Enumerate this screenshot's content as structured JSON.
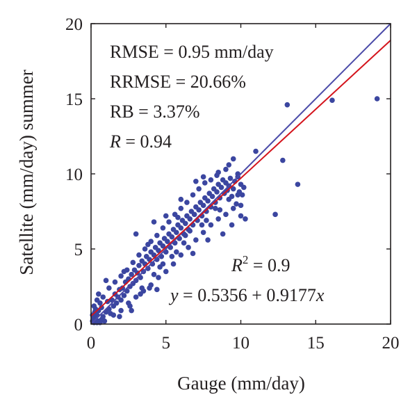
{
  "chart_data": {
    "type": "scatter",
    "xlabel": "Gauge (mm/day)",
    "ylabel": "Satellite (mm/day) summer",
    "xlim": [
      0,
      20
    ],
    "ylim": [
      0,
      20
    ],
    "xticks": [
      "0",
      "5",
      "10",
      "15",
      "20"
    ],
    "yticks": [
      "0",
      "5",
      "10",
      "15",
      "20"
    ],
    "grid": false,
    "legend": "none",
    "stats": {
      "rmse": "RMSE = 0.95 mm/day",
      "rrmse": "RRMSE = 20.66%",
      "rb": "RB = 3.37%",
      "r_symbol": "R",
      "r_value": " = 0.94",
      "r2_base": "R",
      "r2_exp": "2",
      "r2_value": " = 0.9",
      "eq_y": "y",
      "eq_mid": " = 0.5356 + 0.9177",
      "eq_x": "x"
    },
    "lines": [
      {
        "role": "1:1 line",
        "x": [
          0,
          20
        ],
        "y": [
          0,
          20
        ],
        "color": "#4a4aa8"
      },
      {
        "role": "regression fit",
        "x": [
          0,
          20
        ],
        "y": [
          0.5356,
          18.8896
        ],
        "color": "#d4141c"
      }
    ],
    "point_color": "#3b46a0",
    "points": [
      [
        0.1,
        0.2
      ],
      [
        0.2,
        0.1
      ],
      [
        0.15,
        0.4
      ],
      [
        0.3,
        0.3
      ],
      [
        0.4,
        0.1
      ],
      [
        0.5,
        0.2
      ],
      [
        0.1,
        0.6
      ],
      [
        0.25,
        0.8
      ],
      [
        0.6,
        0.1
      ],
      [
        0.7,
        0.3
      ],
      [
        0.3,
        1.0
      ],
      [
        0.4,
        0.6
      ],
      [
        0.5,
        0.9
      ],
      [
        0.2,
        1.2
      ],
      [
        0.8,
        0.5
      ],
      [
        0.9,
        0.2
      ],
      [
        1.0,
        0.8
      ],
      [
        0.6,
        1.4
      ],
      [
        0.7,
        1.1
      ],
      [
        0.4,
        1.6
      ],
      [
        1.2,
        1.0
      ],
      [
        1.1,
        1.5
      ],
      [
        1.3,
        0.7
      ],
      [
        1.4,
        1.6
      ],
      [
        1.5,
        1.2
      ],
      [
        1.6,
        2.0
      ],
      [
        1.7,
        1.4
      ],
      [
        1.8,
        1.8
      ],
      [
        1.9,
        2.3
      ],
      [
        2.0,
        1.6
      ],
      [
        2.1,
        2.4
      ],
      [
        2.2,
        1.9
      ],
      [
        2.3,
        2.8
      ],
      [
        2.4,
        2.2
      ],
      [
        2.5,
        3.0
      ],
      [
        2.6,
        2.5
      ],
      [
        2.7,
        3.3
      ],
      [
        2.8,
        2.7
      ],
      [
        2.9,
        3.6
      ],
      [
        3.0,
        2.9
      ],
      [
        3.1,
        3.4
      ],
      [
        3.2,
        3.9
      ],
      [
        3.3,
        3.1
      ],
      [
        3.4,
        4.2
      ],
      [
        3.5,
        3.5
      ],
      [
        3.6,
        4.0
      ],
      [
        3.7,
        4.5
      ],
      [
        3.8,
        3.7
      ],
      [
        3.9,
        4.3
      ],
      [
        4.0,
        4.8
      ],
      [
        4.1,
        4.0
      ],
      [
        4.2,
        4.6
      ],
      [
        4.3,
        5.1
      ],
      [
        4.4,
        4.3
      ],
      [
        4.5,
        4.9
      ],
      [
        4.6,
        5.4
      ],
      [
        4.7,
        4.5
      ],
      [
        4.8,
        5.2
      ],
      [
        4.9,
        5.7
      ],
      [
        5.0,
        4.8
      ],
      [
        5.1,
        5.5
      ],
      [
        5.2,
        6.0
      ],
      [
        5.3,
        5.1
      ],
      [
        5.4,
        5.8
      ],
      [
        5.5,
        6.3
      ],
      [
        5.6,
        5.4
      ],
      [
        5.7,
        6.1
      ],
      [
        5.8,
        6.6
      ],
      [
        5.9,
        5.7
      ],
      [
        6.0,
        6.4
      ],
      [
        6.1,
        6.9
      ],
      [
        6.2,
        6.0
      ],
      [
        6.3,
        6.7
      ],
      [
        6.4,
        7.2
      ],
      [
        6.5,
        6.3
      ],
      [
        6.6,
        7.0
      ],
      [
        6.7,
        7.5
      ],
      [
        6.8,
        6.6
      ],
      [
        6.9,
        7.3
      ],
      [
        7.0,
        7.8
      ],
      [
        7.1,
        6.9
      ],
      [
        7.2,
        7.6
      ],
      [
        7.3,
        8.1
      ],
      [
        7.4,
        7.2
      ],
      [
        7.5,
        7.9
      ],
      [
        7.6,
        8.4
      ],
      [
        7.7,
        7.5
      ],
      [
        7.8,
        8.2
      ],
      [
        7.9,
        8.7
      ],
      [
        8.0,
        7.8
      ],
      [
        8.1,
        8.5
      ],
      [
        8.2,
        9.0
      ],
      [
        8.3,
        8.1
      ],
      [
        8.4,
        8.8
      ],
      [
        8.5,
        9.3
      ],
      [
        8.6,
        8.4
      ],
      [
        8.7,
        9.1
      ],
      [
        8.8,
        9.6
      ],
      [
        8.9,
        8.7
      ],
      [
        9.0,
        9.4
      ],
      [
        9.1,
        8.9
      ],
      [
        9.2,
        9.2
      ],
      [
        9.3,
        9.7
      ],
      [
        9.4,
        8.5
      ],
      [
        9.5,
        9.0
      ],
      [
        9.6,
        9.5
      ],
      [
        9.7,
        8.0
      ],
      [
        9.8,
        9.8
      ],
      [
        9.9,
        8.8
      ],
      [
        10.0,
        9.3
      ],
      [
        1.5,
        0.6
      ],
      [
        2.0,
        0.9
      ],
      [
        2.5,
        1.4
      ],
      [
        3.0,
        1.8
      ],
      [
        3.5,
        2.2
      ],
      [
        4.0,
        2.6
      ],
      [
        4.5,
        3.1
      ],
      [
        5.0,
        3.5
      ],
      [
        5.5,
        4.0
      ],
      [
        6.0,
        4.6
      ],
      [
        6.5,
        5.1
      ],
      [
        7.0,
        5.6
      ],
      [
        7.5,
        6.1
      ],
      [
        8.0,
        6.6
      ],
      [
        8.5,
        7.0
      ],
      [
        9.0,
        7.3
      ],
      [
        9.5,
        7.7
      ],
      [
        10.0,
        7.9
      ],
      [
        10.1,
        8.6
      ],
      [
        10.2,
        9.1
      ],
      [
        0.8,
        1.8
      ],
      [
        1.2,
        2.4
      ],
      [
        1.6,
        2.8
      ],
      [
        2.0,
        3.2
      ],
      [
        2.4,
        3.6
      ],
      [
        2.8,
        4.1
      ],
      [
        3.2,
        4.6
      ],
      [
        3.6,
        5.0
      ],
      [
        4.0,
        5.5
      ],
      [
        4.4,
        5.9
      ],
      [
        4.8,
        6.4
      ],
      [
        5.2,
        6.8
      ],
      [
        5.6,
        7.3
      ],
      [
        6.0,
        7.7
      ],
      [
        6.4,
        8.1
      ],
      [
        6.8,
        8.6
      ],
      [
        7.2,
        9.0
      ],
      [
        7.6,
        9.4
      ],
      [
        8.0,
        9.6
      ],
      [
        8.4,
        9.9
      ],
      [
        2.2,
        3.5
      ],
      [
        3.4,
        2.4
      ],
      [
        4.6,
        3.8
      ],
      [
        5.4,
        4.5
      ],
      [
        6.2,
        5.4
      ],
      [
        6.6,
        6.2
      ],
      [
        7.4,
        6.6
      ],
      [
        8.6,
        7.6
      ],
      [
        5.8,
        7.1
      ],
      [
        3.8,
        5.3
      ],
      [
        2.6,
        1.2
      ],
      [
        3.3,
        2.0
      ],
      [
        4.2,
        3.3
      ],
      [
        4.8,
        4.0
      ],
      [
        5.7,
        4.8
      ],
      [
        6.3,
        5.9
      ],
      [
        7.7,
        6.9
      ],
      [
        8.3,
        7.7
      ],
      [
        9.2,
        8.3
      ],
      [
        9.8,
        8.6
      ],
      [
        1.9,
        0.5
      ],
      [
        2.7,
        0.9
      ],
      [
        3.9,
        2.4
      ],
      [
        4.4,
        2.3
      ],
      [
        6.8,
        4.7
      ],
      [
        7.8,
        5.6
      ],
      [
        8.8,
        6.0
      ],
      [
        9.4,
        6.6
      ],
      [
        10.0,
        7.2
      ],
      [
        10.3,
        7.0
      ],
      [
        4.2,
        6.8
      ],
      [
        5.0,
        7.2
      ],
      [
        6.0,
        8.3
      ],
      [
        7.0,
        9.5
      ],
      [
        7.5,
        9.8
      ],
      [
        8.5,
        10.1
      ],
      [
        9.0,
        10.3
      ],
      [
        9.2,
        10.6
      ],
      [
        9.8,
        10.0
      ],
      [
        9.5,
        11.0
      ],
      [
        11.0,
        11.5
      ],
      [
        12.3,
        7.3
      ],
      [
        12.8,
        10.9
      ],
      [
        13.1,
        14.6
      ],
      [
        13.8,
        9.3
      ],
      [
        16.1,
        14.9
      ],
      [
        19.1,
        15.0
      ],
      [
        1.0,
        2.9
      ],
      [
        0.5,
        2.0
      ],
      [
        3.0,
        6.0
      ]
    ]
  }
}
